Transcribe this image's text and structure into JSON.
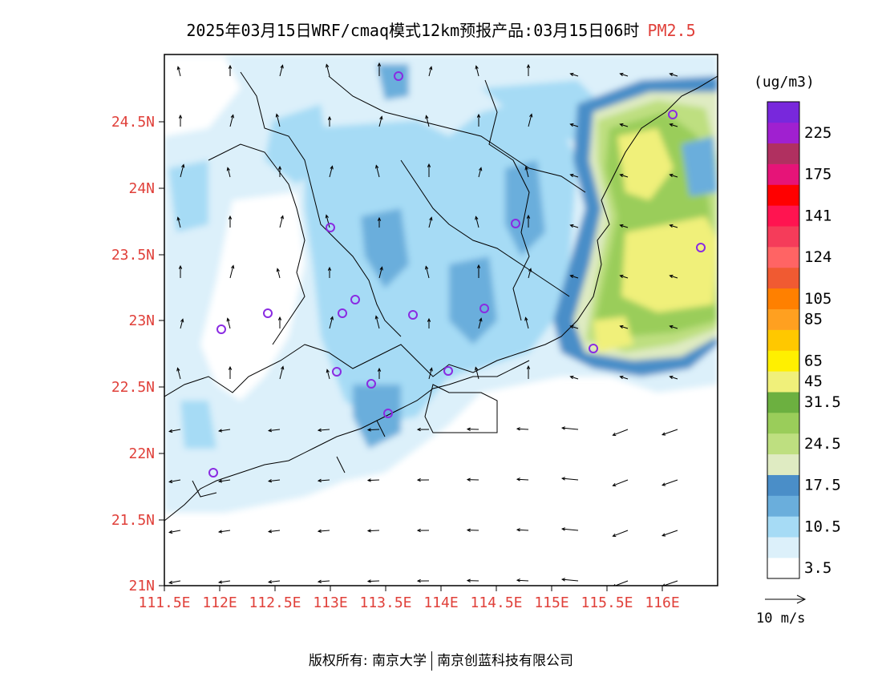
{
  "title": {
    "main": "2025年03月15日WRF/cmaq模式12km预报产品:03月15日06时",
    "variable": "PM2.5"
  },
  "legend": {
    "unit": "(ug/m3)",
    "levels": [
      {
        "color": "#ffffff",
        "label": "3.5"
      },
      {
        "color": "#dcf0fa",
        "label": ""
      },
      {
        "color": "#a6dbf5",
        "label": "10.5"
      },
      {
        "color": "#6aaedc",
        "label": ""
      },
      {
        "color": "#4a8ec8",
        "label": "17.5"
      },
      {
        "color": "#dfebc2",
        "label": ""
      },
      {
        "color": "#bedf80",
        "label": "24.5"
      },
      {
        "color": "#9acd5a",
        "label": ""
      },
      {
        "color": "#6cb040",
        "label": "31.5"
      },
      {
        "color": "#f0f07a",
        "label": "45"
      },
      {
        "color": "#fff000",
        "label": "65"
      },
      {
        "color": "#ffc800",
        "label": ""
      },
      {
        "color": "#ffa020",
        "label": "85"
      },
      {
        "color": "#ff8000",
        "label": "105"
      },
      {
        "color": "#f05a32",
        "label": ""
      },
      {
        "color": "#ff6464",
        "label": "124"
      },
      {
        "color": "#f53c5a",
        "label": ""
      },
      {
        "color": "#ff1450",
        "label": "141"
      },
      {
        "color": "#ff0000",
        "label": ""
      },
      {
        "color": "#e61478",
        "label": "175"
      },
      {
        "color": "#b03060",
        "label": ""
      },
      {
        "color": "#a020d0",
        "label": "225"
      },
      {
        "color": "#7828dc",
        "label": ""
      }
    ]
  },
  "axes": {
    "x_ticks": [
      "111.5E",
      "112E",
      "112.5E",
      "113E",
      "113.5E",
      "114E",
      "114.5E",
      "115E",
      "115.5E",
      "116E"
    ],
    "y_ticks": [
      "21N",
      "21.5N",
      "22N",
      "22.5N",
      "23N",
      "23.5N",
      "24N",
      "24.5N"
    ]
  },
  "wind_reference": {
    "label": "10 m/s"
  },
  "footer": {
    "copyright": "版权所有: 南京大学",
    "company": "南京创蓝科技有限公司"
  },
  "colors": {
    "axis_label": "#e0403a",
    "station": "#8a2be2",
    "boundary": "#000000"
  }
}
